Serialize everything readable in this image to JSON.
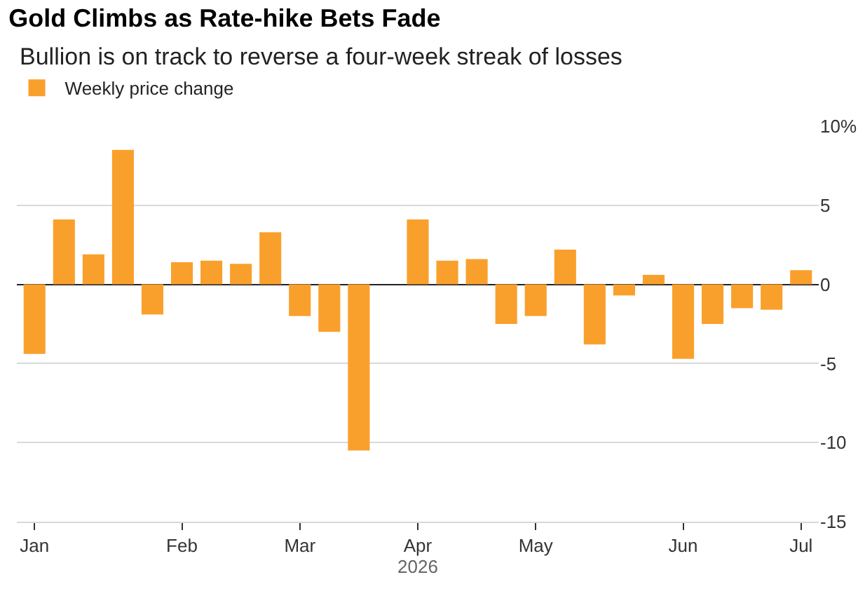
{
  "chart_data": {
    "type": "bar",
    "title": "Gold Climbs as Rate-hike Bets Fade",
    "subtitle": "Bullion is on track to reverse a four-week streak of losses",
    "xlabel": "2026",
    "categories": [
      "Jan",
      null,
      null,
      null,
      null,
      "Feb",
      null,
      null,
      null,
      "Mar",
      null,
      null,
      null,
      "Apr",
      null,
      null,
      null,
      "May",
      null,
      null,
      null,
      null,
      "Jun",
      null,
      null,
      null,
      "Jul"
    ],
    "series": [
      {
        "name": "Weekly price change",
        "color": "#f9a02c",
        "values": [
          -4.4,
          4.1,
          1.9,
          8.5,
          -1.9,
          1.4,
          1.5,
          1.3,
          3.3,
          -2.0,
          -3.0,
          -10.5,
          null,
          4.1,
          1.5,
          1.6,
          -2.5,
          -2.0,
          2.2,
          -3.8,
          -0.7,
          0.6,
          -4.7,
          -2.5,
          -1.5,
          -1.6,
          0.9
        ]
      }
    ],
    "ylim": [
      -15,
      10
    ],
    "yticks": [
      {
        "value": 10,
        "label": "10%"
      },
      5,
      0,
      -5,
      -10,
      -15
    ],
    "grid": "y",
    "legend": "top left"
  }
}
